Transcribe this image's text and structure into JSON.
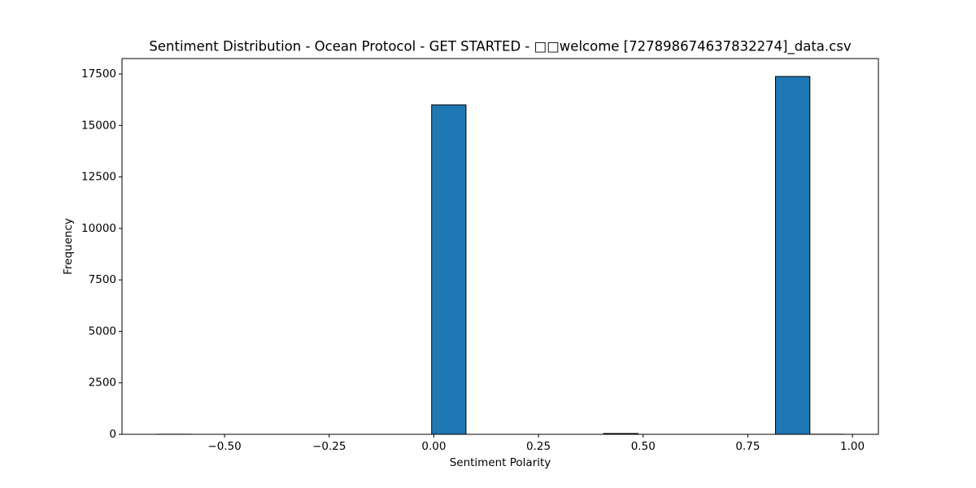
{
  "chart_data": {
    "type": "histogram",
    "title": "Sentiment Distribution - Ocean Protocol - GET STARTED - □□welcome [727898674637832274]_data.csv",
    "x_label": "Sentiment Polarity",
    "y_label": "Frequency",
    "bins": [
      -0.6625,
      -0.5804,
      -0.4982,
      -0.4161,
      -0.3339,
      -0.2518,
      -0.1696,
      -0.0875,
      -0.0053,
      0.0768,
      0.159,
      0.2411,
      0.3233,
      0.4054,
      0.4876,
      0.5697,
      0.6519,
      0.734,
      0.8162,
      0.8983,
      0.98
    ],
    "counts": [
      5,
      0,
      0,
      0,
      0,
      0,
      0,
      0,
      16000,
      0,
      0,
      0,
      0,
      40,
      0,
      0,
      0,
      0,
      17380,
      5
    ],
    "color": "#1f77b4",
    "edgecolor": "#000000",
    "xlim": [
      -0.745,
      1.062
    ],
    "ylim": [
      0,
      18250
    ],
    "xticks": [
      {
        "value": -0.5,
        "label": "−0.50"
      },
      {
        "value": -0.25,
        "label": "−0.25"
      },
      {
        "value": 0,
        "label": "0.00"
      },
      {
        "value": 0.25,
        "label": "0.25"
      },
      {
        "value": 0.5,
        "label": "0.50"
      },
      {
        "value": 0.75,
        "label": "0.75"
      },
      {
        "value": 1,
        "label": "1.00"
      }
    ],
    "yticks": [
      0,
      2500,
      5000,
      7500,
      10000,
      12500,
      15000,
      17500
    ]
  }
}
